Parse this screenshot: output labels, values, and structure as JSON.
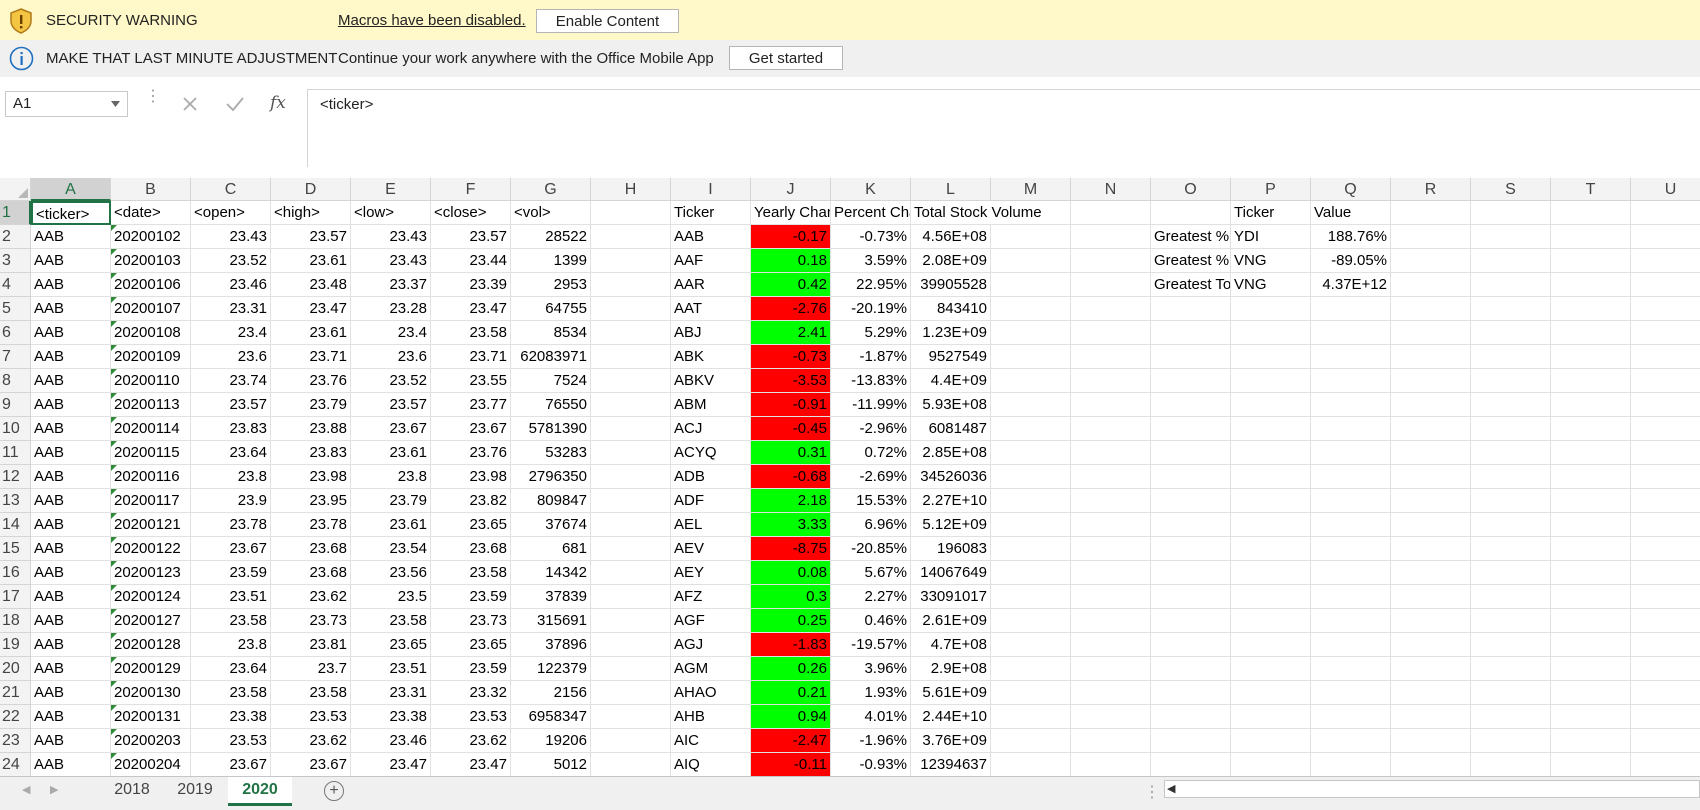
{
  "security_bar": {
    "label": "SECURITY WARNING",
    "message": "Macros have been disabled.",
    "button": "Enable Content"
  },
  "info_bar": {
    "label": "MAKE THAT LAST MINUTE ADJUSTMENT",
    "message": "Continue your work anywhere with the Office Mobile App",
    "button": "Get started"
  },
  "formula_bar": {
    "name_box": "A1",
    "fx": "fx",
    "content": "<ticker>"
  },
  "columns": [
    "A",
    "B",
    "C",
    "D",
    "E",
    "F",
    "G",
    "H",
    "I",
    "J",
    "K",
    "L",
    "M",
    "N",
    "O",
    "P",
    "Q",
    "R",
    "S",
    "T",
    "U"
  ],
  "row_numbers": [
    "1",
    "2",
    "3",
    "4",
    "5",
    "6",
    "7",
    "8",
    "9",
    "10",
    "11",
    "12",
    "13",
    "14",
    "15",
    "16",
    "17",
    "18",
    "19",
    "20",
    "21",
    "22",
    "23",
    "24"
  ],
  "header_row": {
    "A": "<ticker>",
    "B": "<date>",
    "C": "<open>",
    "D": "<high>",
    "E": "<low>",
    "F": "<close>",
    "G": "<vol>",
    "I": "Ticker",
    "J": "Yearly Change",
    "K": "Percent Change",
    "L": "Total Stock Volume",
    "P": "Ticker",
    "Q": "Value"
  },
  "raw_data": [
    [
      "AAB",
      "20200102",
      "23.43",
      "23.57",
      "23.43",
      "23.57",
      "28522"
    ],
    [
      "AAB",
      "20200103",
      "23.52",
      "23.61",
      "23.43",
      "23.44",
      "1399"
    ],
    [
      "AAB",
      "20200106",
      "23.46",
      "23.48",
      "23.37",
      "23.39",
      "2953"
    ],
    [
      "AAB",
      "20200107",
      "23.31",
      "23.47",
      "23.28",
      "23.47",
      "64755"
    ],
    [
      "AAB",
      "20200108",
      "23.4",
      "23.61",
      "23.4",
      "23.58",
      "8534"
    ],
    [
      "AAB",
      "20200109",
      "23.6",
      "23.71",
      "23.6",
      "23.71",
      "62083971"
    ],
    [
      "AAB",
      "20200110",
      "23.74",
      "23.76",
      "23.52",
      "23.55",
      "7524"
    ],
    [
      "AAB",
      "20200113",
      "23.57",
      "23.79",
      "23.57",
      "23.77",
      "76550"
    ],
    [
      "AAB",
      "20200114",
      "23.83",
      "23.88",
      "23.67",
      "23.67",
      "5781390"
    ],
    [
      "AAB",
      "20200115",
      "23.64",
      "23.83",
      "23.61",
      "23.76",
      "53283"
    ],
    [
      "AAB",
      "20200116",
      "23.8",
      "23.98",
      "23.8",
      "23.98",
      "2796350"
    ],
    [
      "AAB",
      "20200117",
      "23.9",
      "23.95",
      "23.79",
      "23.82",
      "809847"
    ],
    [
      "AAB",
      "20200121",
      "23.78",
      "23.78",
      "23.61",
      "23.65",
      "37674"
    ],
    [
      "AAB",
      "20200122",
      "23.67",
      "23.68",
      "23.54",
      "23.68",
      "681"
    ],
    [
      "AAB",
      "20200123",
      "23.59",
      "23.68",
      "23.56",
      "23.58",
      "14342"
    ],
    [
      "AAB",
      "20200124",
      "23.51",
      "23.62",
      "23.5",
      "23.59",
      "37839"
    ],
    [
      "AAB",
      "20200127",
      "23.58",
      "23.73",
      "23.58",
      "23.73",
      "315691"
    ],
    [
      "AAB",
      "20200128",
      "23.8",
      "23.81",
      "23.65",
      "23.65",
      "37896"
    ],
    [
      "AAB",
      "20200129",
      "23.64",
      "23.7",
      "23.51",
      "23.59",
      "122379"
    ],
    [
      "AAB",
      "20200130",
      "23.58",
      "23.58",
      "23.31",
      "23.32",
      "2156"
    ],
    [
      "AAB",
      "20200131",
      "23.38",
      "23.53",
      "23.38",
      "23.53",
      "6958347"
    ],
    [
      "AAB",
      "20200203",
      "23.53",
      "23.62",
      "23.46",
      "23.62",
      "19206"
    ],
    [
      "AAB",
      "20200204",
      "23.67",
      "23.67",
      "23.47",
      "23.47",
      "5012"
    ]
  ],
  "summary": [
    [
      "AAB",
      "-0.17",
      "-0.73%",
      "4.56E+08"
    ],
    [
      "AAF",
      "0.18",
      "3.59%",
      "2.08E+09"
    ],
    [
      "AAR",
      "0.42",
      "22.95%",
      "39905528"
    ],
    [
      "AAT",
      "-2.76",
      "-20.19%",
      "843410"
    ],
    [
      "ABJ",
      "2.41",
      "5.29%",
      "1.23E+09"
    ],
    [
      "ABK",
      "-0.73",
      "-1.87%",
      "9527549"
    ],
    [
      "ABKV",
      "-3.53",
      "-13.83%",
      "4.4E+09"
    ],
    [
      "ABM",
      "-0.91",
      "-11.99%",
      "5.93E+08"
    ],
    [
      "ACJ",
      "-0.45",
      "-2.96%",
      "6081487"
    ],
    [
      "ACYQ",
      "0.31",
      "0.72%",
      "2.85E+08"
    ],
    [
      "ADB",
      "-0.68",
      "-2.69%",
      "34526036"
    ],
    [
      "ADF",
      "2.18",
      "15.53%",
      "2.27E+10"
    ],
    [
      "AEL",
      "3.33",
      "6.96%",
      "5.12E+09"
    ],
    [
      "AEV",
      "-8.75",
      "-20.85%",
      "196083"
    ],
    [
      "AEY",
      "0.08",
      "5.67%",
      "14067649"
    ],
    [
      "AFZ",
      "0.3",
      "2.27%",
      "33091017"
    ],
    [
      "AGF",
      "0.25",
      "0.46%",
      "2.61E+09"
    ],
    [
      "AGJ",
      "-1.83",
      "-19.57%",
      "4.7E+08"
    ],
    [
      "AGM",
      "0.26",
      "3.96%",
      "2.9E+08"
    ],
    [
      "AHAO",
      "0.21",
      "1.93%",
      "5.61E+09"
    ],
    [
      "AHB",
      "0.94",
      "4.01%",
      "2.44E+10"
    ],
    [
      "AIC",
      "-2.47",
      "-1.96%",
      "3.76E+09"
    ],
    [
      "AIQ",
      "-0.11",
      "-0.93%",
      "12394637"
    ]
  ],
  "greatest": [
    [
      "Greatest % Increase",
      "YDI",
      "188.76%"
    ],
    [
      "Greatest % Decrease",
      "VNG",
      "-89.05%"
    ],
    [
      "Greatest Total Volume",
      "VNG",
      "4.37E+12"
    ]
  ],
  "sheet_tabs": [
    "2018",
    "2019",
    "2020"
  ],
  "active_tab": "2020",
  "colors": {
    "positive": "#00FF00",
    "negative": "#FF0000",
    "accent": "#217346"
  }
}
